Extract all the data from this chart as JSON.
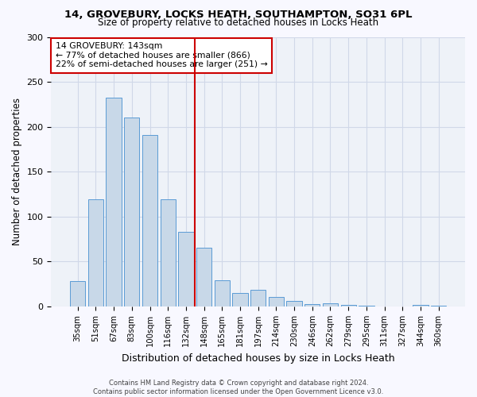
{
  "title1": "14, GROVEBURY, LOCKS HEATH, SOUTHAMPTON, SO31 6PL",
  "title2": "Size of property relative to detached houses in Locks Heath",
  "xlabel": "Distribution of detached houses by size in Locks Heath",
  "ylabel": "Number of detached properties",
  "categories": [
    "35sqm",
    "51sqm",
    "67sqm",
    "83sqm",
    "100sqm",
    "116sqm",
    "132sqm",
    "148sqm",
    "165sqm",
    "181sqm",
    "197sqm",
    "214sqm",
    "230sqm",
    "246sqm",
    "262sqm",
    "279sqm",
    "295sqm",
    "311sqm",
    "327sqm",
    "344sqm",
    "360sqm"
  ],
  "values": [
    28,
    119,
    232,
    210,
    191,
    119,
    83,
    65,
    29,
    15,
    19,
    11,
    6,
    3,
    4,
    2,
    1,
    0,
    0,
    2,
    1
  ],
  "bar_color": "#c8d8e8",
  "bar_edge_color": "#5b9bd5",
  "vline_pos": 6.5,
  "vline_color": "#cc0000",
  "annotation_text": "14 GROVEBURY: 143sqm\n← 77% of detached houses are smaller (866)\n22% of semi-detached houses are larger (251) →",
  "annotation_box_color": "#ffffff",
  "annotation_box_edge": "#cc0000",
  "grid_color": "#d0d8e8",
  "background_color": "#eef2f8",
  "fig_background": "#f8f8ff",
  "footer": "Contains HM Land Registry data © Crown copyright and database right 2024.\nContains public sector information licensed under the Open Government Licence v3.0.",
  "ylim": [
    0,
    300
  ],
  "yticks": [
    0,
    50,
    100,
    150,
    200,
    250,
    300
  ]
}
